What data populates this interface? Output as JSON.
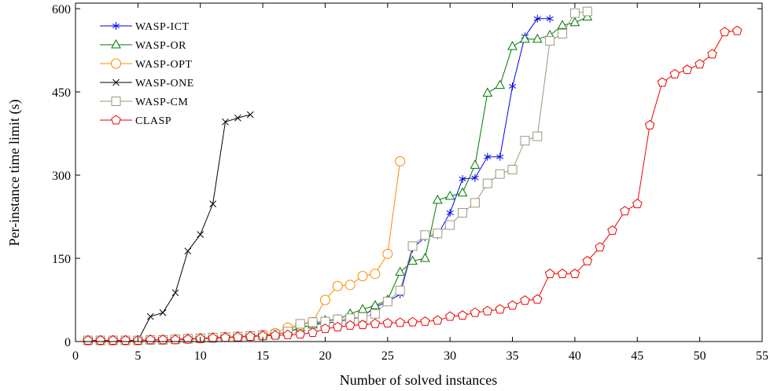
{
  "chart_data": {
    "type": "line",
    "xlabel": "Number of solved instances",
    "ylabel": "Per-instance time limit (s)",
    "xlim": [
      0,
      55
    ],
    "ylim": [
      0,
      610
    ],
    "x_ticks": [
      0,
      5,
      10,
      15,
      20,
      25,
      30,
      35,
      40,
      45,
      50,
      55
    ],
    "y_ticks": [
      0,
      150,
      300,
      450,
      600
    ],
    "grid": false,
    "legend_position": "top-left",
    "series": [
      {
        "name": "WASP-ICT",
        "color": "#0000ee",
        "marker": "asterisk",
        "x": [
          1,
          2,
          3,
          4,
          5,
          6,
          7,
          8,
          9,
          10,
          11,
          12,
          13,
          14,
          15,
          16,
          17,
          18,
          19,
          20,
          21,
          22,
          23,
          24,
          25,
          26,
          27,
          28,
          29,
          30,
          31,
          32,
          33,
          34,
          35,
          36,
          37,
          38
        ],
        "y": [
          2,
          2,
          2,
          2,
          2,
          3,
          3,
          4,
          5,
          6,
          7,
          8,
          9,
          10,
          11,
          13,
          17,
          25,
          30,
          33,
          36,
          40,
          45,
          62,
          72,
          85,
          168,
          188,
          192,
          232,
          293,
          295,
          333,
          333,
          460,
          550,
          582,
          582
        ]
      },
      {
        "name": "WASP-OR",
        "color": "#007700",
        "marker": "triangle",
        "x": [
          1,
          2,
          3,
          4,
          5,
          6,
          7,
          8,
          9,
          10,
          11,
          12,
          13,
          14,
          15,
          16,
          17,
          18,
          19,
          20,
          21,
          22,
          23,
          24,
          25,
          26,
          27,
          28,
          29,
          30,
          31,
          32,
          33,
          34,
          35,
          36,
          37,
          38,
          39,
          40,
          41
        ],
        "y": [
          2,
          2,
          2,
          2,
          2,
          3,
          3,
          4,
          5,
          6,
          7,
          8,
          9,
          10,
          11,
          13,
          17,
          25,
          30,
          38,
          40,
          50,
          58,
          65,
          75,
          125,
          145,
          150,
          255,
          262,
          268,
          318,
          448,
          462,
          532,
          545,
          545,
          552,
          570,
          575,
          585
        ]
      },
      {
        "name": "WASP-OPT",
        "color": "#ff8800",
        "marker": "circle",
        "x": [
          1,
          2,
          3,
          4,
          5,
          6,
          7,
          8,
          9,
          10,
          11,
          12,
          13,
          14,
          15,
          16,
          17,
          18,
          19,
          20,
          21,
          22,
          23,
          24,
          25,
          26
        ],
        "y": [
          2,
          2,
          2,
          2,
          2,
          3,
          3,
          4,
          5,
          6,
          7,
          8,
          9,
          10,
          12,
          15,
          25,
          30,
          35,
          75,
          100,
          102,
          118,
          122,
          158,
          325
        ]
      },
      {
        "name": "WASP-ONE",
        "color": "#000000",
        "marker": "x",
        "x": [
          1,
          2,
          3,
          4,
          5,
          6,
          7,
          8,
          9,
          10,
          11,
          12,
          13,
          14
        ],
        "y": [
          2,
          2,
          2,
          2,
          2,
          45,
          52,
          88,
          163,
          193,
          248,
          396,
          403,
          409
        ]
      },
      {
        "name": "WASP-CM",
        "color": "#99997a",
        "marker": "square",
        "x": [
          1,
          2,
          3,
          4,
          5,
          6,
          7,
          8,
          9,
          10,
          11,
          12,
          13,
          14,
          15,
          16,
          17,
          18,
          19,
          20,
          21,
          22,
          23,
          24,
          25,
          26,
          27,
          28,
          29,
          30,
          31,
          32,
          33,
          34,
          35,
          36,
          37,
          38,
          39,
          40,
          41
        ],
        "y": [
          2,
          2,
          2,
          2,
          2,
          3,
          3,
          4,
          5,
          6,
          7,
          8,
          9,
          10,
          11,
          13,
          18,
          32,
          35,
          36,
          40,
          42,
          44,
          50,
          72,
          92,
          172,
          192,
          195,
          210,
          232,
          250,
          285,
          302,
          310,
          362,
          370,
          542,
          555,
          592,
          595
        ]
      },
      {
        "name": "CLASP",
        "color": "#ee0000",
        "marker": "pentagon",
        "x": [
          1,
          2,
          3,
          4,
          5,
          6,
          7,
          8,
          9,
          10,
          11,
          12,
          13,
          14,
          15,
          16,
          17,
          18,
          19,
          20,
          21,
          22,
          23,
          24,
          25,
          26,
          27,
          28,
          29,
          30,
          31,
          32,
          33,
          34,
          35,
          36,
          37,
          38,
          39,
          40,
          41,
          42,
          43,
          44,
          45,
          46,
          47,
          48,
          49,
          50,
          51,
          52,
          53
        ],
        "y": [
          2,
          2,
          2,
          2,
          2,
          3,
          3,
          3,
          4,
          5,
          6,
          7,
          8,
          9,
          10,
          11,
          12,
          13,
          16,
          23,
          26,
          29,
          30,
          32,
          33,
          34,
          35,
          36,
          38,
          45,
          47,
          52,
          55,
          58,
          65,
          74,
          76,
          122,
          122,
          122,
          145,
          170,
          200,
          235,
          248,
          390,
          467,
          482,
          490,
          500,
          518,
          558,
          560
        ]
      }
    ]
  }
}
